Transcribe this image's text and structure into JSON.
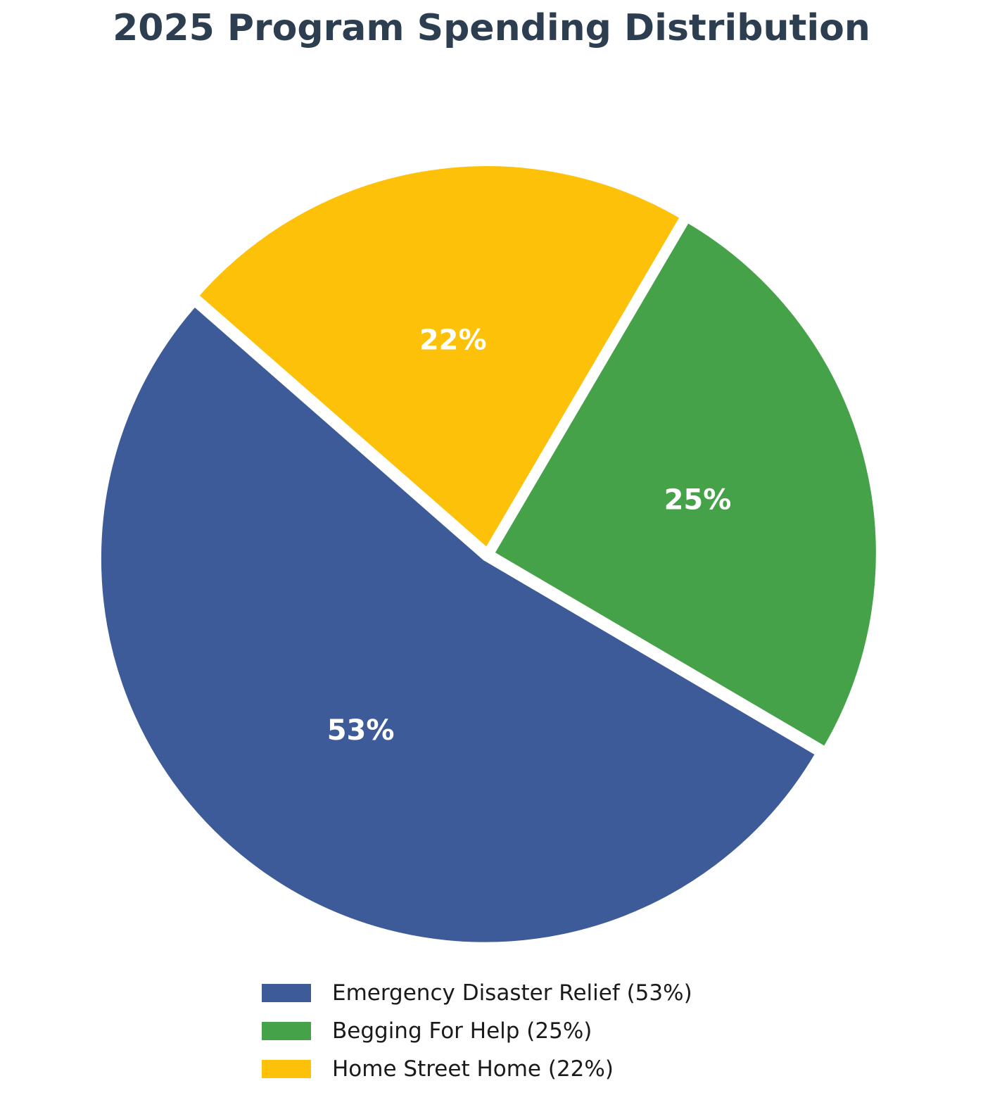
{
  "chart_data": {
    "type": "pie",
    "title": "2025 Program Spending Distribution",
    "slices": [
      {
        "label": "Emergency Disaster Relief",
        "value": 53,
        "data_label": "53%",
        "legend": "Emergency Disaster Relief (53%)",
        "color": "#3d5a99"
      },
      {
        "label": "Begging For Help",
        "value": 25,
        "data_label": "25%",
        "legend": "Begging For Help (25%)",
        "color": "#46a248"
      },
      {
        "label": "Home Street Home",
        "value": 22,
        "data_label": "22%",
        "legend": "Home Street Home (22%)",
        "color": "#fdc10a"
      }
    ],
    "legend_position": "bottom"
  }
}
